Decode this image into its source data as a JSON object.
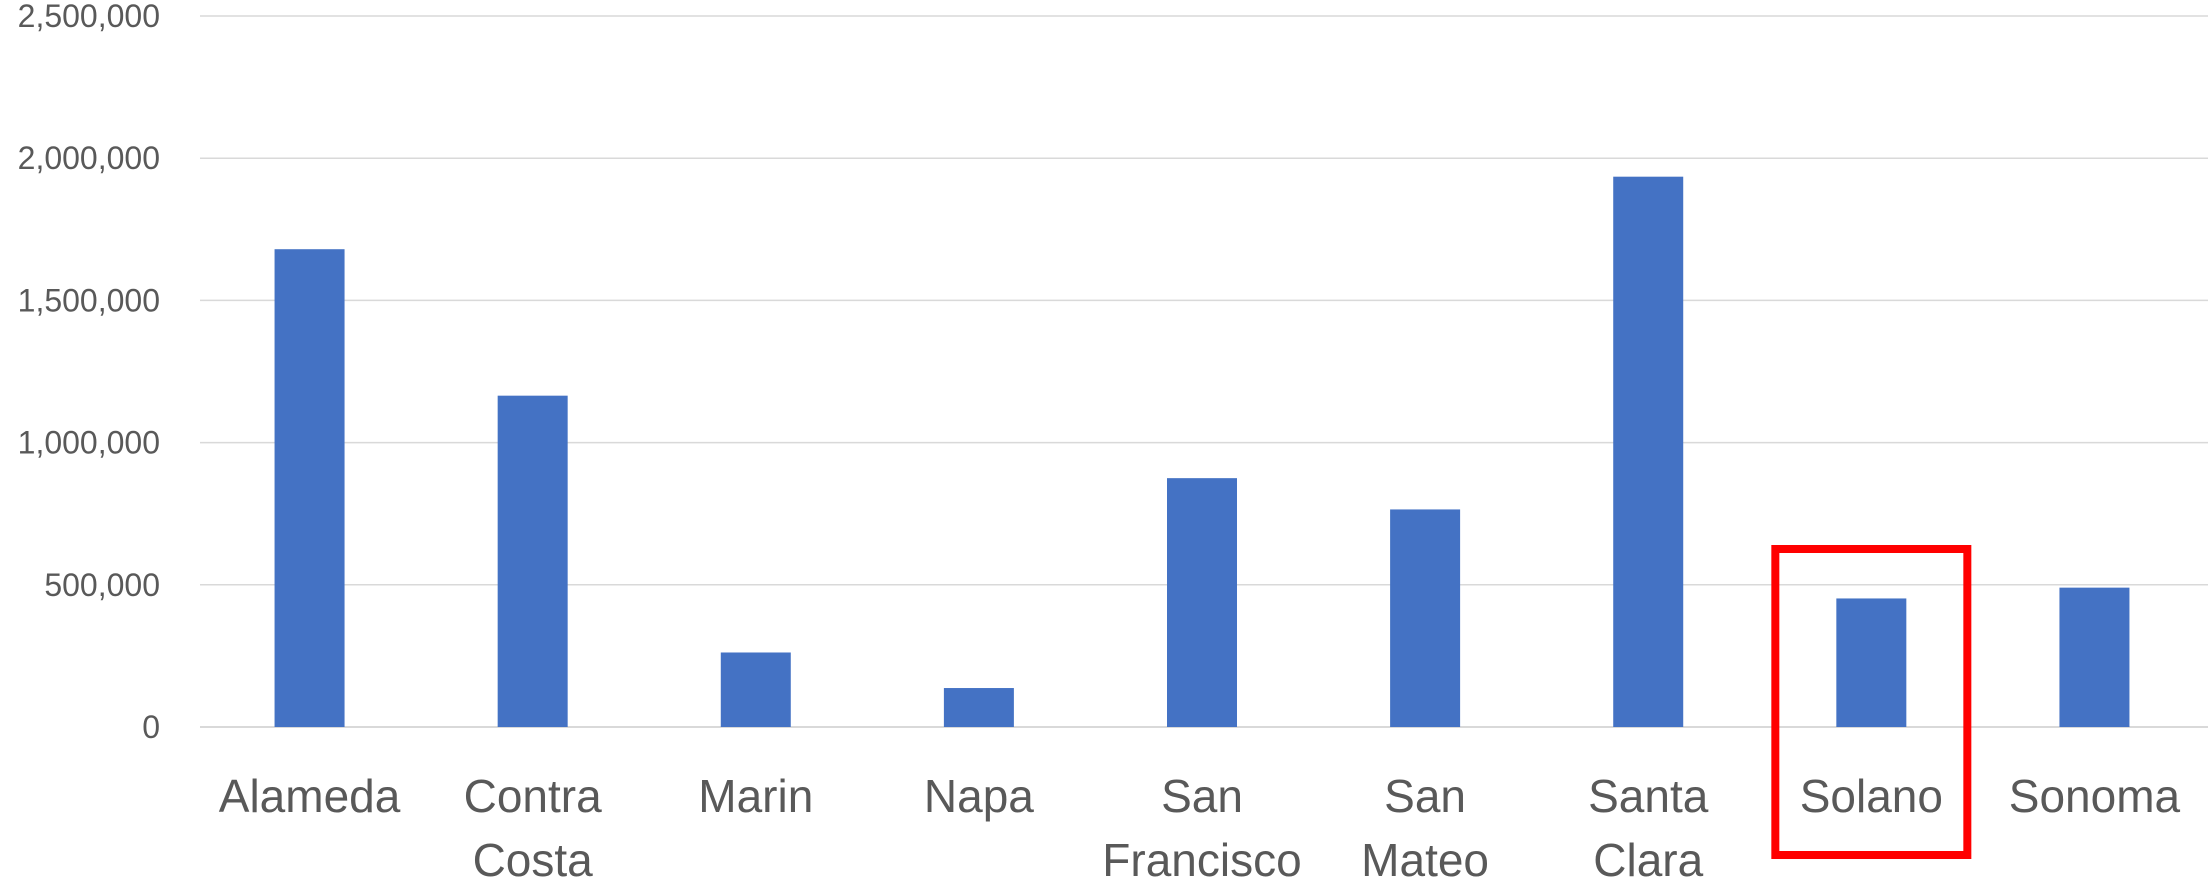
{
  "chart_data": {
    "type": "bar",
    "title": "",
    "xlabel": "",
    "ylabel": "",
    "categories": [
      [
        "Alameda"
      ],
      [
        "Contra",
        "Costa"
      ],
      [
        "Marin"
      ],
      [
        "Napa"
      ],
      [
        "San",
        "Francisco"
      ],
      [
        "San",
        "Mateo"
      ],
      [
        "Santa",
        "Clara"
      ],
      [
        "Solano"
      ],
      [
        "Sonoma"
      ]
    ],
    "values": [
      1680000,
      1165000,
      262000,
      137000,
      875000,
      765000,
      1935000,
      452000,
      490000
    ],
    "ylim": [
      0,
      2500000
    ],
    "yticks": [
      0,
      500000,
      1000000,
      1500000,
      2000000,
      2500000
    ],
    "ytick_labels": [
      "0",
      "500,000",
      "1,000,000",
      "1,500,000",
      "2,000,000",
      "2,500,000"
    ],
    "grid": true,
    "legend": "none",
    "bar_color": "#4472c4",
    "highlight": {
      "category": "Solano",
      "color": "#ff0000"
    }
  }
}
